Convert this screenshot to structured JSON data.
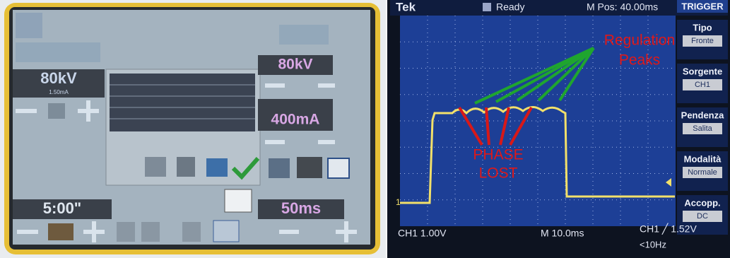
{
  "xray_panel": {
    "kv_left": "80kV",
    "ma_small": "1.50mA",
    "kv_right": "80kV",
    "ma": "400mA",
    "time": "5:00\"",
    "ms": "50ms"
  },
  "scope": {
    "status": {
      "brand": "Tek",
      "state": "Ready",
      "position": "M Pos: 40.00ms"
    },
    "trigger_menu": {
      "title": "TRIGGER",
      "items": [
        {
          "label": "Tipo",
          "value": "Fronte"
        },
        {
          "label": "Sorgente",
          "value": "CH1"
        },
        {
          "label": "Pendenza",
          "value": "Salita"
        },
        {
          "label": "Modalità",
          "value": "Normale"
        },
        {
          "label": "Accopp.",
          "value": "DC"
        }
      ]
    },
    "marker": "1",
    "footer": {
      "channel": "CH1 1.00V",
      "timebase": "M 10.0ms",
      "trigger": "CH1 ╱ 1.52V",
      "filter": "<10Hz"
    },
    "annotations": {
      "regulation": [
        "Regulation",
        "Peaks"
      ],
      "phase": [
        "PHASE",
        "LOST"
      ]
    }
  }
}
